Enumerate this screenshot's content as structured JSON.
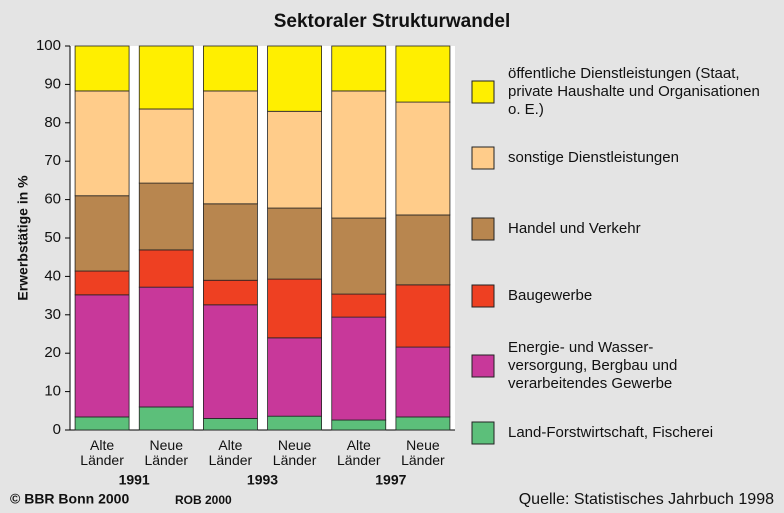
{
  "chart_data": {
    "type": "stacked-bar",
    "title": "Sektoraler Strukturwandel",
    "ylabel": "Erwerbstätige in %",
    "categories": [
      "Alte Länder",
      "Neue Länder",
      "Alte Länder",
      "Neue Länder",
      "Alte Länder",
      "Neue Länder"
    ],
    "groups": [
      "1991",
      "1993",
      "1997"
    ],
    "series": [
      {
        "name": "Land-Forstwirtschaft, Fischerei",
        "color": "#5cbf7a",
        "values": [
          3.4,
          6.0,
          3.0,
          3.6,
          2.6,
          3.4
        ]
      },
      {
        "name": "Energie- und Wasser-versorgung, Bergbau und verarbeitendes Gewerbe",
        "color": "#c8389a",
        "values": [
          31.8,
          31.2,
          29.6,
          20.4,
          26.8,
          18.2
        ]
      },
      {
        "name": "Baugewerbe",
        "color": "#ee4022",
        "values": [
          6.2,
          9.7,
          6.4,
          15.3,
          6.0,
          16.2
        ]
      },
      {
        "name": "Handel und Verkehr",
        "color": "#b8864f",
        "values": [
          19.6,
          17.4,
          19.9,
          18.5,
          19.8,
          18.2
        ]
      },
      {
        "name": "sonstige Dienstleistungen",
        "color": "#ffcc8a",
        "values": [
          27.3,
          19.3,
          29.4,
          25.2,
          33.1,
          29.4
        ]
      },
      {
        "name": "öffentliche Dienstleistungen (Staat, private Haushalte und Organisationen o. E.)",
        "color": "#ffef00",
        "values": [
          11.7,
          16.4,
          11.7,
          17.0,
          11.7,
          14.6
        ]
      }
    ],
    "ylim": [
      0,
      100
    ],
    "yticks": [
      0,
      10,
      20,
      30,
      40,
      50,
      60,
      70,
      80,
      90,
      100
    ],
    "footer_left": "© BBR Bonn 2000",
    "footer_mid": "ROB 2000",
    "source": "Quelle: Statistisches Jahrbuch 1998"
  }
}
